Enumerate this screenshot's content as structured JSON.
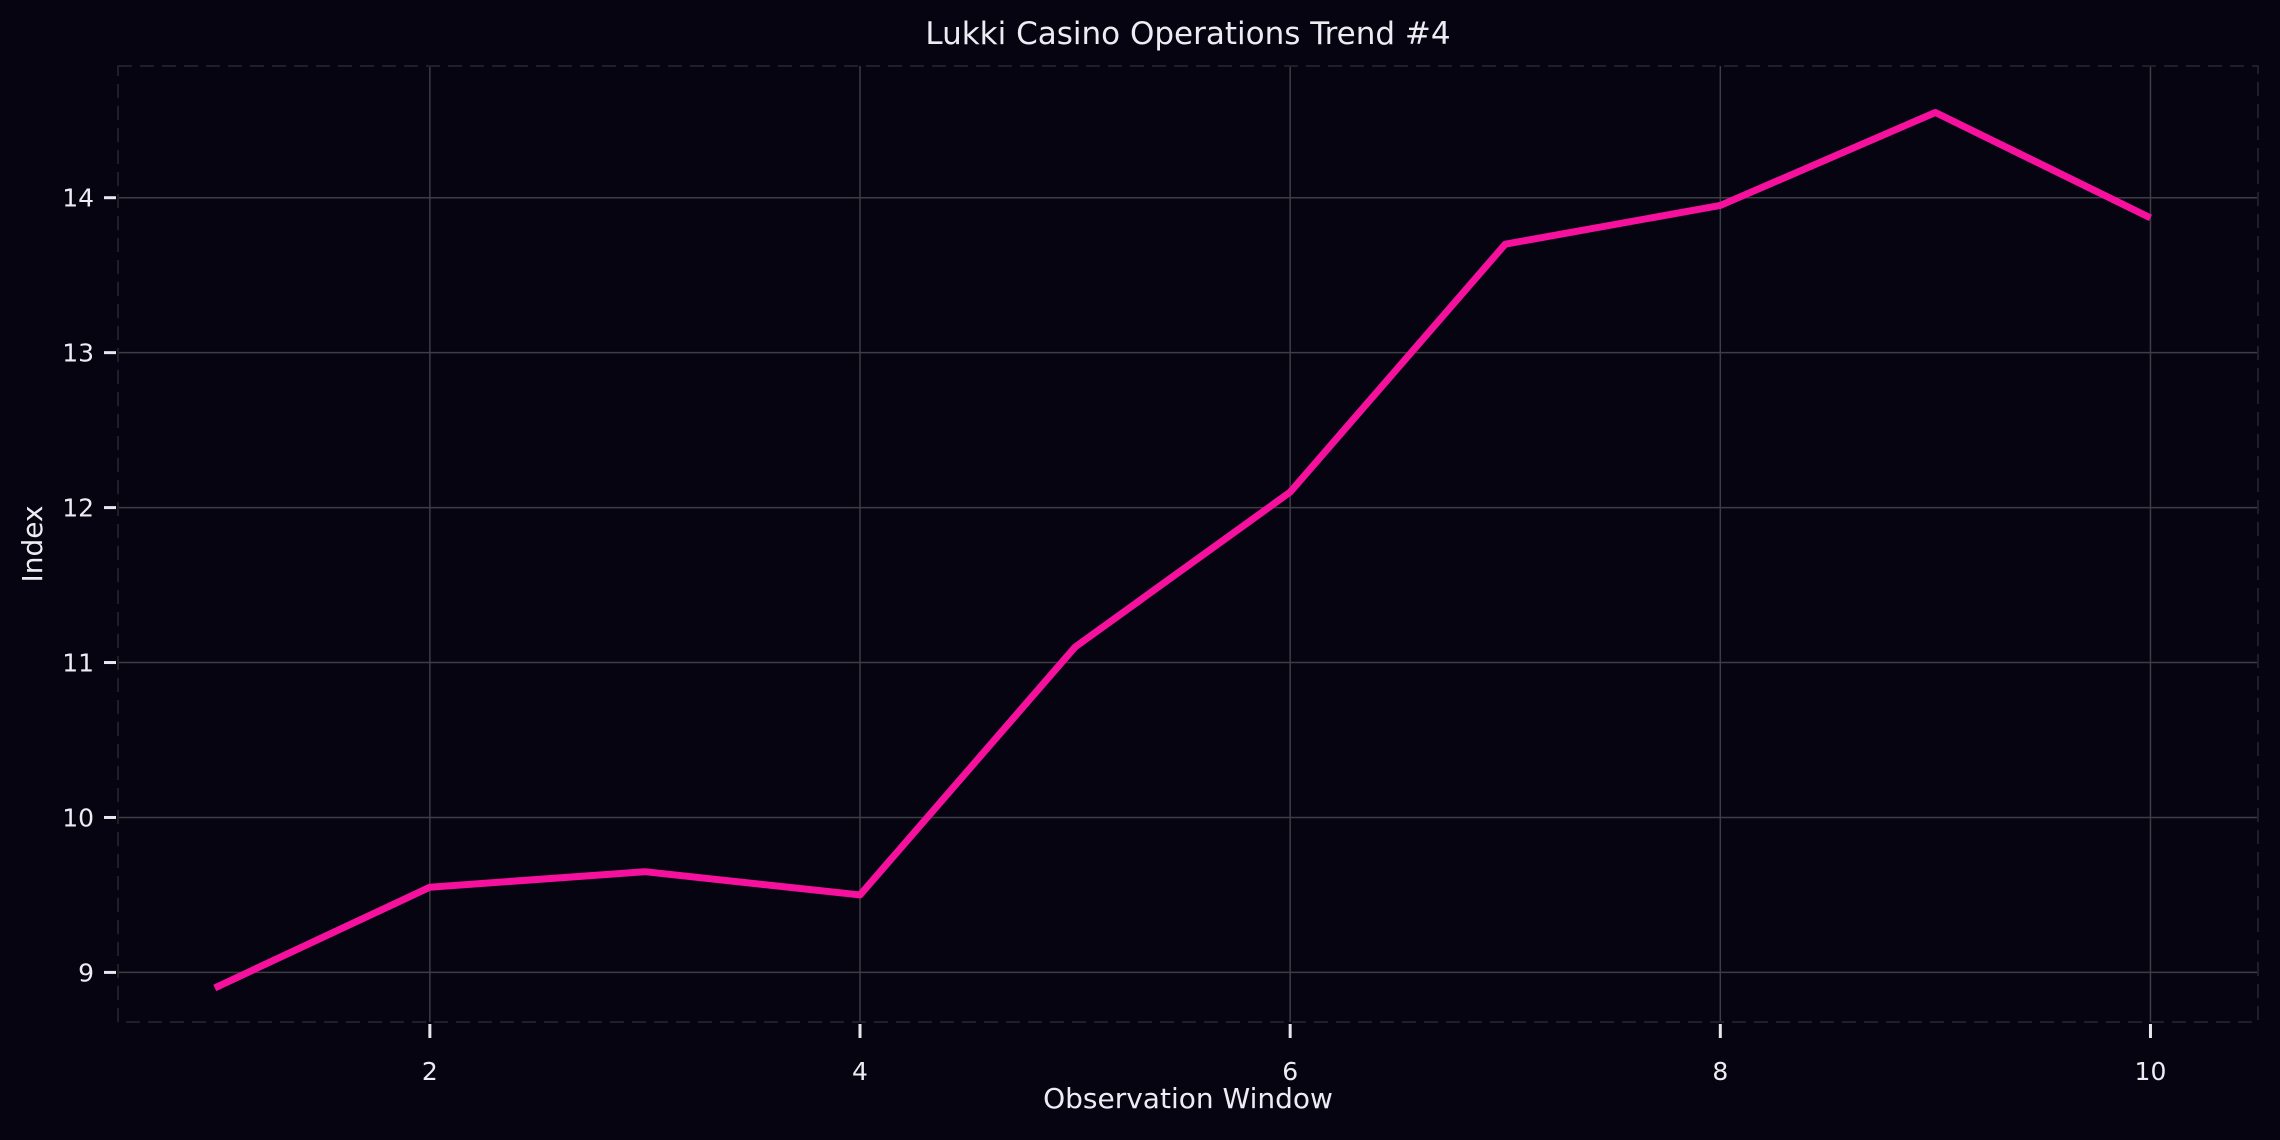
{
  "figure": {
    "background": "#060410",
    "text_color": "#eeebf3",
    "grid_color": "#3d3d45",
    "spine_color": "#1f1f27",
    "tick_mark_color": "#e9e6ee"
  },
  "chart_data": {
    "type": "line",
    "title": "Lukki Casino Operations Trend #4",
    "xlabel": "Observation Window",
    "ylabel": "Index",
    "x": [
      1,
      2,
      3,
      4,
      5,
      6,
      7,
      8,
      9,
      10
    ],
    "series": [
      {
        "name": "Index",
        "values": [
          8.9,
          9.55,
          9.65,
          9.5,
          11.1,
          12.1,
          13.7,
          13.95,
          14.55,
          13.87
        ]
      }
    ],
    "line_color": "#f5119e",
    "line_width": 7,
    "xticks": [
      2,
      4,
      6,
      8,
      10
    ],
    "yticks": [
      9,
      10,
      11,
      12,
      13,
      14
    ],
    "xlim": [
      0.55,
      10.5
    ],
    "ylim": [
      8.68,
      14.85
    ],
    "grid": true,
    "legend_position": "none"
  }
}
